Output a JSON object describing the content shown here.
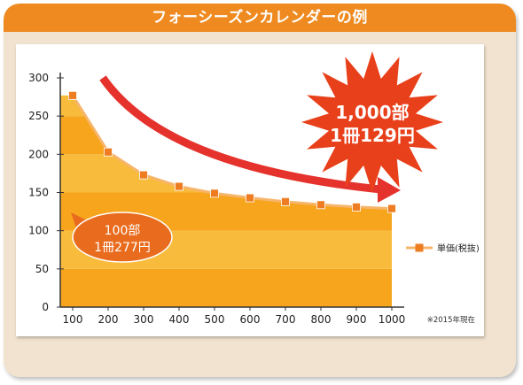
{
  "title": "フォーシーズンカレンダーの例",
  "chart_data": {
    "type": "area",
    "title": "",
    "xlabel": "",
    "ylabel": "",
    "x": [
      100,
      200,
      300,
      400,
      500,
      600,
      700,
      800,
      900,
      1000
    ],
    "ylim": [
      0,
      300
    ],
    "yticks": [
      0,
      50,
      100,
      150,
      200,
      250,
      300
    ],
    "series": [
      {
        "name": "単価(税抜)",
        "values": [
          277,
          203,
          173,
          158,
          149,
          143,
          138,
          134,
          131,
          129
        ]
      }
    ],
    "legend_position": "right",
    "grid": false,
    "note": "※2015年現在",
    "callouts": {
      "low": {
        "line1": "100部",
        "line2": "1冊277円"
      },
      "high": {
        "line1": "1,000部",
        "line2": "1冊129円"
      }
    },
    "colors": {
      "area_dark": "#f6a51c",
      "area_light": "#f8bb3c",
      "line": "#f7b56b",
      "marker": "#ee7d22",
      "arrow": "#e5322d",
      "burst": "#e8401b",
      "oval": "#e96c1e"
    }
  }
}
